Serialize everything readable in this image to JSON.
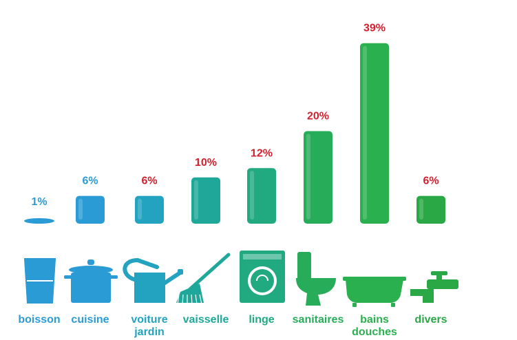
{
  "chart_data": {
    "type": "bar",
    "categories": [
      "boisson",
      "cuisine",
      "voiture\njardin",
      "vaisselle",
      "linge",
      "sanitaires",
      "bains\ndouches",
      "divers"
    ],
    "values": [
      1,
      6,
      6,
      10,
      12,
      20,
      39,
      6
    ],
    "value_labels": [
      "1%",
      "6%",
      "6%",
      "10%",
      "12%",
      "20%",
      "39%",
      "6%"
    ],
    "icons": [
      "glass-icon",
      "cooking-pot-icon",
      "watering-can-icon",
      "broom-icon",
      "washing-machine-icon",
      "toilet-icon",
      "bathtub-icon",
      "faucet-icon"
    ],
    "bar_colors": [
      "#2b9bd6",
      "#2b9bd6",
      "#23a3c0",
      "#1fa89a",
      "#21aa80",
      "#27ad5a",
      "#2bb04f",
      "#2aa846"
    ],
    "value_label_colors": [
      "#2b9bd6",
      "#2b9bd6",
      "#d21f2d",
      "#d21f2d",
      "#d21f2d",
      "#d21f2d",
      "#d21f2d",
      "#d21f2d"
    ],
    "category_label_colors": [
      "#2b9bd6",
      "#2b9bd6",
      "#23a3c0",
      "#1fa89a",
      "#21aa80",
      "#27ad5a",
      "#2bb04f",
      "#2aa846"
    ],
    "ylim": [
      0,
      40
    ],
    "grid": false,
    "legend": "none"
  }
}
